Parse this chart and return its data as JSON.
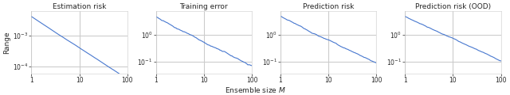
{
  "titles": [
    "Estimation risk",
    "Training error",
    "Prediction risk",
    "Prediction risk (OOD)"
  ],
  "ylabel": "Range",
  "xlabel": "Ensemble size $M$",
  "xlim": [
    1,
    100
  ],
  "line_color": "#4878cf",
  "line_width": 0.8,
  "figsize": [
    6.4,
    1.2
  ],
  "dpi": 100,
  "panel0": {
    "ylim": [
      6e-05,
      0.006
    ],
    "yticks": [
      0.0001,
      0.001
    ],
    "slope": -1.0,
    "start": 0.004,
    "noise_scale": 0.015,
    "noise_seed": 1
  },
  "panel1": {
    "ylim": [
      0.035,
      8.0
    ],
    "yticks": [
      0.1,
      1.0
    ],
    "slope": -0.9,
    "start": 5.0,
    "noise_scale": 0.08,
    "noise_seed": 2
  },
  "panel2": {
    "ylim": [
      0.035,
      8.0
    ],
    "yticks": [
      0.1,
      1.0
    ],
    "slope": -0.85,
    "start": 5.0,
    "noise_scale": 0.06,
    "noise_seed": 3
  },
  "panel3": {
    "ylim": [
      0.035,
      8.0
    ],
    "yticks": [
      0.1,
      1.0
    ],
    "slope": -0.85,
    "start": 5.0,
    "noise_scale": 0.045,
    "noise_seed": 4
  }
}
